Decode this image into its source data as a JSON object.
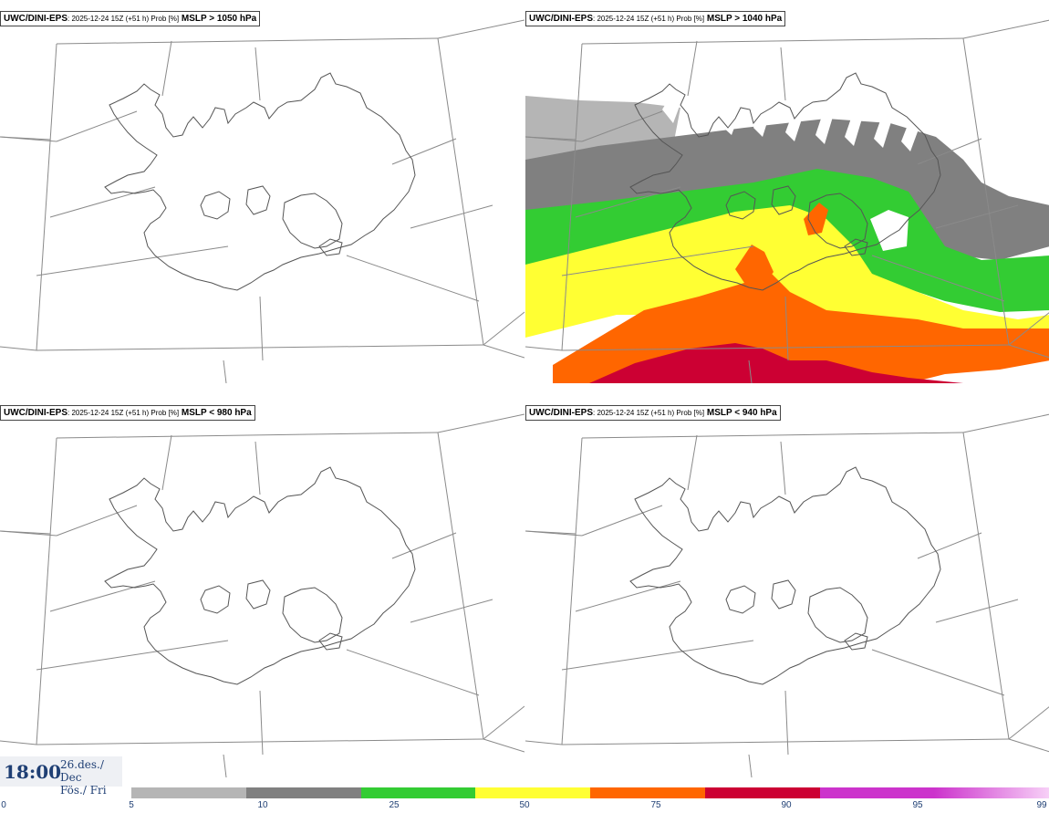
{
  "panels": [
    {
      "model": "UWC/DINI-EPS",
      "meta": ": 2025-12-24 15Z (+51 h) Prob [%]",
      "param": "MSLP > 1050 hPa",
      "filled": false
    },
    {
      "model": "UWC/DINI-EPS",
      "meta": ": 2025-12-24 15Z (+51 h) Prob [%]",
      "param": "MSLP > 1040 hPa",
      "filled": true
    },
    {
      "model": "UWC/DINI-EPS",
      "meta": ": 2025-12-24 15Z (+51 h) Prob [%]",
      "param": "MSLP < 980 hPa",
      "filled": false
    },
    {
      "model": "UWC/DINI-EPS",
      "meta": ": 2025-12-24 15Z (+51 h) Prob [%]",
      "param": "MSLP < 940 hPa",
      "filled": false
    }
  ],
  "time": {
    "hour": "18:00",
    "date_line1": "26.des./ Dec",
    "date_line2": "Fös./ Fri"
  },
  "legend": {
    "ticks": [
      "0",
      "5",
      "10",
      "25",
      "50",
      "75",
      "90",
      "95",
      "99"
    ],
    "colors": [
      "#b5b5b5",
      "#808080",
      "#33cc33",
      "#ffff33",
      "#ff6600",
      "#cc0033",
      "#cc33cc",
      "#f0a0f0"
    ]
  }
}
